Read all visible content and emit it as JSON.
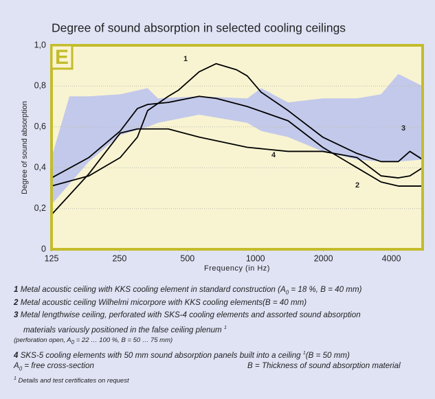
{
  "chart_data": {
    "type": "line",
    "title": "Degree of sound absorption in selected cooling ceilings",
    "ylabel": "Degree of sound absorption",
    "xlabel": "Frequency (in Hz)",
    "badge": "E",
    "xlog": true,
    "xlim": [
      125,
      5500
    ],
    "xticks": [
      125,
      250,
      500,
      1000,
      2000,
      4000
    ],
    "ylim": [
      0,
      1
    ],
    "yticks": [
      0,
      {
        "value": 0.2,
        "label": "0,2"
      },
      {
        "value": 0.4,
        "label": "0,4"
      },
      {
        "value": 0.6,
        "label": "0,6"
      },
      {
        "value": 0.8,
        "label": "0,8"
      },
      {
        "value": 1,
        "label": "1,0"
      }
    ],
    "grid": true,
    "series": [
      {
        "name": "1",
        "color": "#000000",
        "x": [
          125,
          183,
          252,
          300,
          333,
          411,
          456,
          563,
          670,
          825,
          920,
          1060,
          1395,
          1985,
          2815,
          3600,
          4290,
          4830,
          5500
        ],
        "values": [
          0.31,
          0.36,
          0.45,
          0.55,
          0.68,
          0.75,
          0.78,
          0.87,
          0.91,
          0.88,
          0.85,
          0.77,
          0.68,
          0.55,
          0.47,
          0.43,
          0.43,
          0.48,
          0.44
        ]
      },
      {
        "name": "2",
        "color": "#000000",
        "x": [
          125,
          183,
          252,
          300,
          333,
          411,
          563,
          670,
          920,
          1395,
          1985,
          2815,
          3600,
          4290,
          5500
        ],
        "values": [
          0.35,
          0.45,
          0.58,
          0.69,
          0.71,
          0.72,
          0.75,
          0.74,
          0.7,
          0.63,
          0.5,
          0.4,
          0.33,
          0.31,
          0.31
        ]
      },
      {
        "name": "3",
        "color": "#c3c9ea",
        "type": "band",
        "x": [
          125,
          150,
          183,
          252,
          333,
          370,
          563,
          920,
          1060,
          1395,
          1985,
          2815,
          3600,
          4290,
          5500
        ],
        "values": [
          0.45,
          0.75,
          0.75,
          0.76,
          0.79,
          0.74,
          0.75,
          0.74,
          0.79,
          0.72,
          0.74,
          0.74,
          0.76,
          0.86,
          0.8
        ],
        "lower": [
          0.22,
          0.32,
          0.43,
          0.56,
          0.6,
          0.62,
          0.66,
          0.62,
          0.58,
          0.55,
          0.48,
          0.44,
          0.43,
          0.43,
          0.44
        ]
      },
      {
        "name": "4",
        "color": "#000000",
        "x": [
          125,
          183,
          252,
          300,
          411,
          563,
          920,
          1395,
          1985,
          2815,
          3600,
          4290,
          4830,
          5500
        ],
        "values": [
          0.17,
          0.37,
          0.57,
          0.59,
          0.59,
          0.55,
          0.5,
          0.48,
          0.48,
          0.45,
          0.36,
          0.35,
          0.36,
          0.4
        ]
      }
    ]
  },
  "notes": [
    [
      "1",
      "Metal acoustic ceiling with KKS cooling element in standard construction (A",
      "0",
      " = 18 %, B = 40 mm)"
    ],
    [
      "2",
      "Metal acoustic ceiling Wilhelmi micorpore with KKS cooling elements(B = 40 mm)"
    ],
    [
      "3",
      "Metal lengthwise ceiling, perforated with SKS-4 cooling elements and assorted sound absorption",
      "materials variously positioned in the false ceiling plenum",
      "1",
      "(perforation open, A",
      "0",
      " = 22 … 100 %, B = 50 … 75 mm)"
    ],
    [
      "4",
      "SKS-5 cooling elements with 50 mm sound absorption panels built into a ceiling",
      "1",
      "(B = 50 mm)"
    ],
    [
      "A",
      "0",
      " = free cross-section",
      "B = Thickness of sound absorption material"
    ],
    [
      "1",
      " Details and test certificates on request"
    ]
  ]
}
